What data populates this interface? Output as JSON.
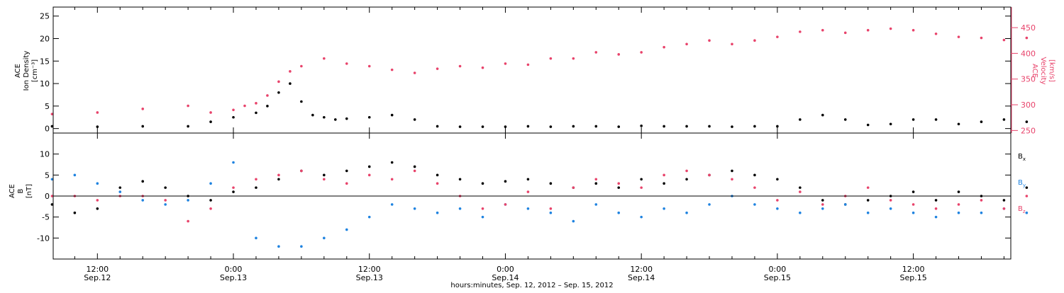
{
  "chart_data": [
    {
      "type": "scatter",
      "panel": "top",
      "ylabel_lines": [
        "ACE",
        "Ion Density",
        "[cm⁻³]"
      ],
      "ylabel_right_lines": [
        "ACE",
        "Velocity",
        "[km/s]"
      ],
      "ylim_left": [
        -1,
        27
      ],
      "ylim_right": [
        245,
        490
      ],
      "yticks_left": [
        0,
        5,
        10,
        15,
        20,
        25
      ],
      "yticks_right": [
        250,
        300,
        350,
        400,
        450
      ],
      "series": [
        {
          "name": "Ion Density",
          "axis": "left",
          "color": "#000000",
          "x": [
            -4,
            0,
            4,
            8,
            10,
            12,
            14,
            15,
            16,
            17,
            18,
            19,
            20,
            21,
            22,
            24,
            26,
            28,
            30,
            32,
            34,
            36,
            38,
            40,
            42,
            44,
            46,
            48,
            50,
            52,
            54,
            56,
            58,
            60,
            62,
            64,
            66,
            68,
            70,
            72,
            74,
            76,
            78,
            80,
            82
          ],
          "y": [
            0.5,
            0.4,
            0.5,
            0.5,
            1.5,
            2.5,
            3.5,
            5,
            8,
            10,
            6,
            3,
            2.5,
            2,
            2.2,
            2.5,
            3,
            2,
            0.5,
            0.4,
            0.4,
            0.4,
            0.5,
            0.4,
            0.5,
            0.5,
            0.4,
            0.6,
            0.5,
            0.5,
            0.5,
            0.4,
            0.5,
            0.5,
            2,
            3,
            2,
            0.8,
            1,
            2,
            2,
            1,
            1.5,
            2,
            1.5
          ]
        },
        {
          "name": "Velocity",
          "axis": "right",
          "color": "#e8436b",
          "x": [
            -4,
            0,
            4,
            8,
            10,
            12,
            13,
            14,
            15,
            16,
            17,
            18,
            20,
            22,
            24,
            26,
            28,
            30,
            32,
            34,
            36,
            38,
            40,
            42,
            44,
            46,
            48,
            50,
            52,
            54,
            56,
            58,
            60,
            62,
            64,
            66,
            68,
            70,
            72,
            74,
            76,
            78,
            80,
            82
          ],
          "y": [
            282,
            285,
            292,
            298,
            285,
            290,
            298,
            303,
            318,
            345,
            365,
            375,
            390,
            380,
            375,
            368,
            362,
            370,
            375,
            372,
            380,
            378,
            390,
            390,
            402,
            398,
            402,
            412,
            418,
            425,
            418,
            425,
            432,
            442,
            445,
            440,
            445,
            448,
            445,
            438,
            432,
            430,
            426,
            430
          ]
        }
      ]
    },
    {
      "type": "scatter",
      "panel": "bottom",
      "ylabel_lines": [
        "ACE",
        "B",
        "[nT]"
      ],
      "ylim": [
        -15,
        15
      ],
      "yticks": [
        -10,
        -5,
        0,
        5,
        10
      ],
      "legend": [
        {
          "label": "B",
          "sub": "x",
          "color": "#000000"
        },
        {
          "label": "B",
          "sub": "y",
          "color": "#1f83e0"
        },
        {
          "label": "B",
          "sub": "z",
          "color": "#e8436b"
        }
      ],
      "series": [
        {
          "name": "Bx",
          "color": "#000000",
          "x": [
            -4,
            -2,
            0,
            2,
            4,
            6,
            8,
            10,
            12,
            14,
            16,
            18,
            20,
            22,
            24,
            26,
            28,
            30,
            32,
            34,
            36,
            38,
            40,
            42,
            44,
            46,
            48,
            50,
            52,
            54,
            56,
            58,
            60,
            62,
            64,
            66,
            68,
            70,
            72,
            74,
            76,
            78,
            80,
            82
          ],
          "y": [
            -2,
            -4,
            -3,
            2,
            3.5,
            2,
            0,
            -1,
            1,
            2,
            4,
            6,
            5,
            6,
            7,
            8,
            7,
            5,
            4,
            3,
            3.5,
            4,
            3,
            2,
            3,
            2,
            4,
            3,
            4,
            5,
            6,
            5,
            4,
            2,
            -1,
            -2,
            -1,
            0,
            1,
            -1,
            1,
            0,
            -1,
            2
          ]
        },
        {
          "name": "By",
          "color": "#1f83e0",
          "x": [
            -4,
            -2,
            0,
            2,
            4,
            6,
            8,
            10,
            12,
            14,
            16,
            18,
            20,
            22,
            24,
            26,
            28,
            30,
            32,
            34,
            36,
            38,
            40,
            42,
            44,
            46,
            48,
            50,
            52,
            54,
            56,
            58,
            60,
            62,
            64,
            66,
            68,
            70,
            72,
            74,
            76,
            78,
            80,
            82
          ],
          "y": [
            4,
            5,
            3,
            1,
            -1,
            -2,
            -1,
            3,
            8,
            -10,
            -12,
            -12,
            -10,
            -8,
            -5,
            -2,
            -3,
            -4,
            -3,
            -5,
            -2,
            -3,
            -4,
            -6,
            -2,
            -4,
            -5,
            -3,
            -4,
            -2,
            0,
            -2,
            -3,
            -4,
            -3,
            -2,
            -4,
            -3,
            -4,
            -5,
            -4,
            -4,
            -3,
            -4
          ]
        },
        {
          "name": "Bz",
          "color": "#e8436b",
          "x": [
            -4,
            -2,
            0,
            2,
            4,
            6,
            8,
            10,
            12,
            14,
            16,
            18,
            20,
            22,
            24,
            26,
            28,
            30,
            32,
            34,
            36,
            38,
            40,
            42,
            44,
            46,
            48,
            50,
            52,
            54,
            56,
            58,
            60,
            62,
            64,
            66,
            68,
            70,
            72,
            74,
            76,
            78,
            80,
            82
          ],
          "y": [
            0,
            0,
            -1,
            0,
            0,
            -1,
            -6,
            -3,
            2,
            4,
            5,
            6,
            4,
            3,
            5,
            4,
            6,
            3,
            0,
            -3,
            -2,
            1,
            -3,
            2,
            4,
            3,
            2,
            5,
            6,
            5,
            4,
            2,
            -1,
            1,
            -2,
            0,
            2,
            -1,
            -2,
            -3,
            -2,
            -1,
            -3,
            0
          ]
        }
      ]
    }
  ],
  "x_axis": {
    "range_hours": [
      -3.9,
      80.6
    ],
    "ticks": [
      {
        "hours": 0,
        "time": "12:00",
        "date": "Sep.12"
      },
      {
        "hours": 12,
        "time": "0:00",
        "date": "Sep.13"
      },
      {
        "hours": 24,
        "time": "12:00",
        "date": "Sep.13"
      },
      {
        "hours": 36,
        "time": "0:00",
        "date": "Sep.14"
      },
      {
        "hours": 48,
        "time": "12:00",
        "date": "Sep.14"
      },
      {
        "hours": 60,
        "time": "0:00",
        "date": "Sep.15"
      },
      {
        "hours": 72,
        "time": "12:00",
        "date": "Sep.15"
      }
    ],
    "label": "hours:minutes, Sep. 12, 2012 – Sep. 15, 2012"
  }
}
